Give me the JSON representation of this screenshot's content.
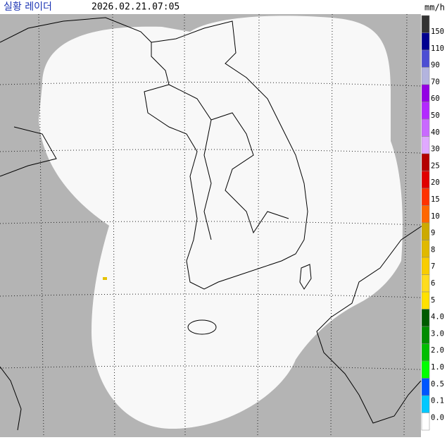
{
  "header": {
    "title": "실황 레이더",
    "timestamp": "2026.02.21.07:05",
    "unit": "mm/h"
  },
  "legend": {
    "items": [
      {
        "label": "150",
        "color": "#333333"
      },
      {
        "label": "110",
        "color": "#000090"
      },
      {
        "label": "90",
        "color": "#4c4ed3"
      },
      {
        "label": "70",
        "color": "#b3b4de"
      },
      {
        "label": "60",
        "color": "#9300e4"
      },
      {
        "label": "50",
        "color": "#b329ff"
      },
      {
        "label": "40",
        "color": "#c969ff"
      },
      {
        "label": "30",
        "color": "#e0a9ff"
      },
      {
        "label": "25",
        "color": "#b40000"
      },
      {
        "label": "20",
        "color": "#e00000"
      },
      {
        "label": "15",
        "color": "#ff3200"
      },
      {
        "label": "10",
        "color": "#ff6600"
      },
      {
        "label": "9",
        "color": "#ccaa00"
      },
      {
        "label": "8",
        "color": "#e0b900"
      },
      {
        "label": "7",
        "color": "#f9cd00"
      },
      {
        "label": "6",
        "color": "#ffdc1f"
      },
      {
        "label": "5",
        "color": "#ffe100"
      },
      {
        "label": "4.0",
        "color": "#005a00"
      },
      {
        "label": "3.0",
        "color": "#008c00"
      },
      {
        "label": "2.0",
        "color": "#00be00"
      },
      {
        "label": "1.0",
        "color": "#00ff00"
      },
      {
        "label": "0.5",
        "color": "#0055ff"
      },
      {
        "label": "0.1",
        "color": "#00c8ff"
      },
      {
        "label": "0.0",
        "color": "#ffffff"
      }
    ]
  }
}
